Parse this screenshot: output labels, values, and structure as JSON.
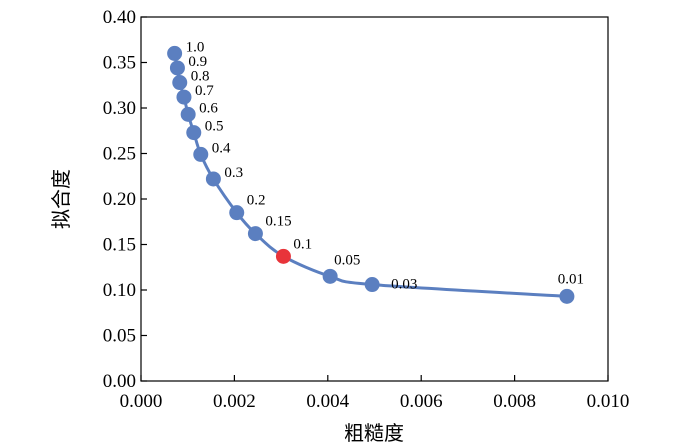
{
  "chart_data": {
    "type": "line",
    "xlabel": "粗糙度",
    "ylabel": "拟合度",
    "xlim": [
      0.0,
      0.01
    ],
    "ylim": [
      0.0,
      0.4
    ],
    "x_ticks": [
      "0.000",
      "0.002",
      "0.004",
      "0.006",
      "0.008",
      "0.010"
    ],
    "y_ticks": [
      "0.00",
      "0.05",
      "0.10",
      "0.15",
      "0.20",
      "0.25",
      "0.30",
      "0.35",
      "0.40"
    ],
    "grid": false,
    "colors": {
      "line": "#5b7fc0",
      "point": "#5b7fc0",
      "highlight": "#e8343a"
    },
    "highlight_label": "0.1",
    "points": [
      {
        "label": "1.0",
        "x": 0.00072,
        "y": 0.36
      },
      {
        "label": "0.9",
        "x": 0.00078,
        "y": 0.344
      },
      {
        "label": "0.8",
        "x": 0.00083,
        "y": 0.328
      },
      {
        "label": "0.7",
        "x": 0.00092,
        "y": 0.312
      },
      {
        "label": "0.6",
        "x": 0.00101,
        "y": 0.293
      },
      {
        "label": "0.5",
        "x": 0.00113,
        "y": 0.273
      },
      {
        "label": "0.4",
        "x": 0.00128,
        "y": 0.249
      },
      {
        "label": "0.3",
        "x": 0.00155,
        "y": 0.222
      },
      {
        "label": "0.2",
        "x": 0.00205,
        "y": 0.185
      },
      {
        "label": "0.15",
        "x": 0.00245,
        "y": 0.162
      },
      {
        "label": "0.1",
        "x": 0.00305,
        "y": 0.137
      },
      {
        "label": "0.05",
        "x": 0.00405,
        "y": 0.115
      },
      {
        "label": "0.03",
        "x": 0.00495,
        "y": 0.106
      },
      {
        "label": "0.01",
        "x": 0.00912,
        "y": 0.093
      }
    ]
  }
}
